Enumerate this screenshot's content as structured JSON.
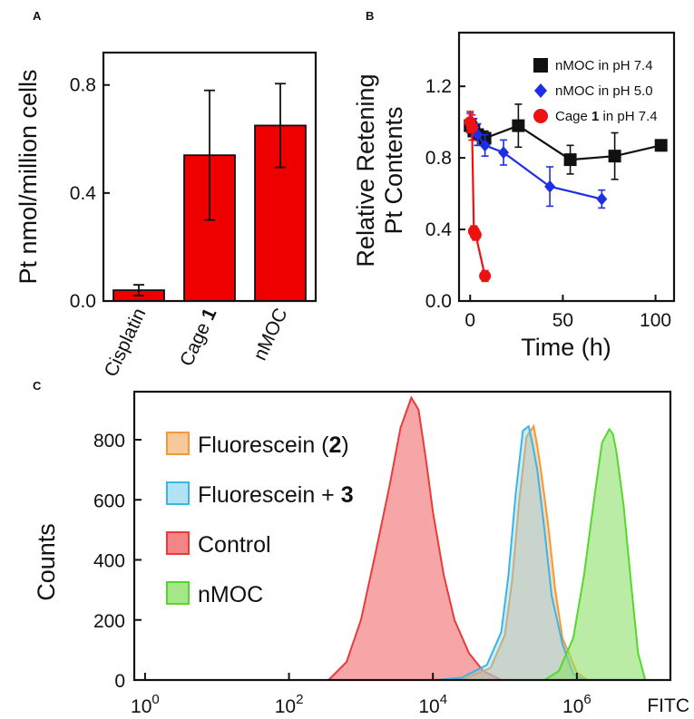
{
  "panels": {
    "a": "A",
    "b": "B",
    "c": "C"
  },
  "chart_data": [
    {
      "type": "bar",
      "panel": "A",
      "title": "",
      "categories": [
        "Cisplatin",
        "Cage ",
        "nMOC"
      ],
      "category_bold_suffix": [
        "",
        "1",
        ""
      ],
      "values": [
        0.04,
        0.54,
        0.65
      ],
      "errors": [
        0.02,
        0.24,
        0.155
      ],
      "bar_color": "#ee0000",
      "ylabel": "Pt nmol/million cells",
      "xlabel": "",
      "ylim": [
        0,
        0.92
      ],
      "yticks": [
        0.0,
        0.4,
        0.8
      ],
      "ytick_labels": [
        "0.0",
        "0.4",
        "0.8"
      ]
    },
    {
      "type": "line",
      "panel": "B",
      "ylabel_line1": "Relative Retening",
      "ylabel_line2": "Pt Contents",
      "xlabel": "Time (h)",
      "xlim": [
        -6,
        110
      ],
      "ylim": [
        0,
        1.5
      ],
      "xticks": [
        0,
        50,
        100
      ],
      "xtick_labels": [
        "0",
        "50",
        "100"
      ],
      "yticks": [
        0.0,
        0.4,
        0.8,
        1.2
      ],
      "ytick_labels": [
        "0.0",
        "0.4",
        "0.8",
        "1.2"
      ],
      "legend_position": "top-right",
      "series": [
        {
          "name": "nMOC in pH 7.4",
          "name_bold": "",
          "name_after": "",
          "color": "#111111",
          "marker": "square",
          "x": [
            0,
            2,
            4,
            8,
            26,
            54,
            78,
            103
          ],
          "y": [
            0.98,
            0.95,
            0.93,
            0.91,
            0.98,
            0.79,
            0.81,
            0.87
          ],
          "err": [
            0.04,
            0.05,
            0.06,
            0.04,
            0.12,
            0.08,
            0.13,
            0.03
          ]
        },
        {
          "name": "nMOC in pH 5.0",
          "name_bold": "",
          "name_after": "",
          "color": "#1e2ee6",
          "marker": "diamond",
          "x": [
            0,
            2,
            4,
            8,
            18,
            43,
            71
          ],
          "y": [
            1.0,
            0.97,
            0.93,
            0.87,
            0.83,
            0.64,
            0.57
          ],
          "err": [
            0.05,
            0.05,
            0.06,
            0.06,
            0.07,
            0.11,
            0.05
          ]
        },
        {
          "name": "Cage ",
          "name_bold": "1",
          "name_after": " in pH 7.4",
          "color": "#ee1111",
          "marker": "circle",
          "x": [
            0,
            1,
            2,
            3,
            8
          ],
          "y": [
            1.0,
            0.97,
            0.39,
            0.37,
            0.14
          ],
          "err": [
            0.06,
            0.07,
            0.03,
            0.03,
            0.03
          ]
        }
      ]
    },
    {
      "type": "area",
      "panel": "C",
      "xlabel": "FITC",
      "ylabel": "Counts",
      "x_scale": "log",
      "xlim_log10": [
        -0.15,
        7.3
      ],
      "ylim": [
        0,
        960
      ],
      "xtick_log10": [
        0,
        2,
        4,
        6
      ],
      "xtick_base": "10",
      "xtick_exponents": [
        "0",
        "2",
        "4",
        "6"
      ],
      "yticks": [
        0,
        200,
        400,
        600,
        800
      ],
      "ytick_labels": [
        "0",
        "200",
        "400",
        "600",
        "800"
      ],
      "legend_position": "top-left",
      "series": [
        {
          "name": "Fluorescein (",
          "name_bold": "2",
          "name_after": ")",
          "stroke": "#f29a38",
          "fill": "#f4b678",
          "opacity": 0.55,
          "x_log10": [
            4.1,
            4.45,
            4.8,
            5.0,
            5.1,
            5.2,
            5.3,
            5.4,
            5.45,
            5.5,
            5.6,
            5.7,
            5.8,
            6.0,
            6.15
          ],
          "y": [
            0,
            5,
            40,
            150,
            330,
            600,
            810,
            845,
            780,
            700,
            520,
            300,
            140,
            25,
            0
          ]
        },
        {
          "name": "Fluorescein + ",
          "name_bold": "3",
          "name_after": "",
          "stroke": "#3ab6e6",
          "fill": "#7fd0ef",
          "opacity": 0.4,
          "x_log10": [
            4.05,
            4.4,
            4.75,
            4.95,
            5.05,
            5.15,
            5.25,
            5.33,
            5.38,
            5.45,
            5.55,
            5.65,
            5.8,
            5.95,
            6.1
          ],
          "y": [
            0,
            8,
            50,
            160,
            350,
            620,
            830,
            845,
            790,
            700,
            500,
            280,
            120,
            20,
            0
          ]
        },
        {
          "name": "Control",
          "name_bold": "",
          "name_after": "",
          "stroke": "#ea3a3a",
          "fill": "#ee5c5c",
          "opacity": 0.55,
          "x_log10": [
            2.55,
            2.8,
            3.0,
            3.2,
            3.4,
            3.55,
            3.7,
            3.8,
            3.9,
            4.0,
            4.15,
            4.3,
            4.5,
            4.7,
            4.95
          ],
          "y": [
            0,
            60,
            200,
            420,
            650,
            840,
            940,
            900,
            740,
            560,
            350,
            200,
            90,
            30,
            0
          ]
        },
        {
          "name": "nMOC",
          "name_bold": "",
          "name_after": "",
          "stroke": "#55d82c",
          "fill": "#8ee06a",
          "opacity": 0.6,
          "x_log10": [
            5.55,
            5.75,
            5.95,
            6.1,
            6.25,
            6.35,
            6.45,
            6.5,
            6.55,
            6.65,
            6.75,
            6.85,
            6.95
          ],
          "y": [
            0,
            30,
            140,
            350,
            620,
            790,
            835,
            820,
            760,
            580,
            330,
            90,
            0
          ]
        }
      ]
    }
  ]
}
